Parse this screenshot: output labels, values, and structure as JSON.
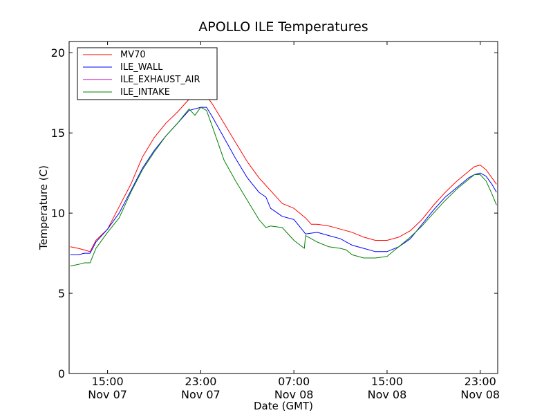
{
  "chart_data": {
    "type": "line",
    "title": "APOLLO ILE Temperatures",
    "xlabel": "Date (GMT)",
    "ylabel": "Temperature (C)",
    "ylim": [
      0,
      20.7
    ],
    "xlim": [
      11.7,
      48.5
    ],
    "grid": false,
    "legend_position": "top-left",
    "yticks": [
      0,
      5,
      10,
      15,
      20
    ],
    "xticks": [
      {
        "value": 15,
        "time": "15:00",
        "date": "Nov 07"
      },
      {
        "value": 23,
        "time": "23:00",
        "date": "Nov 07"
      },
      {
        "value": 31,
        "time": "07:00",
        "date": "Nov 08"
      },
      {
        "value": 39,
        "time": "15:00",
        "date": "Nov 08"
      },
      {
        "value": 47,
        "time": "23:00",
        "date": "Nov 08"
      }
    ],
    "series": [
      {
        "name": "MV70",
        "color": "#ff0000",
        "x": [
          11.8,
          12.5,
          13.0,
          13.5,
          14.0,
          15.0,
          16.0,
          17.0,
          18.0,
          19.0,
          20.0,
          21.0,
          22.0,
          23.0,
          23.5,
          24.0,
          25.0,
          26.0,
          27.0,
          28.0,
          29.0,
          30.0,
          31.0,
          32.0,
          32.5,
          33.0,
          34.0,
          35.0,
          36.0,
          37.0,
          38.0,
          39.0,
          40.0,
          41.0,
          42.0,
          43.0,
          44.0,
          45.0,
          46.0,
          46.5,
          47.0,
          47.5,
          48.0,
          48.4
        ],
        "y": [
          7.9,
          7.8,
          7.7,
          7.6,
          8.3,
          9.0,
          10.4,
          11.8,
          13.5,
          14.7,
          15.6,
          16.3,
          17.1,
          17.4,
          17.3,
          16.8,
          15.6,
          14.4,
          13.2,
          12.2,
          11.4,
          10.6,
          10.3,
          9.7,
          9.3,
          9.3,
          9.2,
          9.0,
          8.8,
          8.5,
          8.3,
          8.3,
          8.5,
          8.9,
          9.6,
          10.5,
          11.3,
          12.0,
          12.6,
          12.9,
          13.0,
          12.7,
          12.2,
          11.8
        ]
      },
      {
        "name": "ILE_WALL",
        "color": "#0000ff",
        "x": [
          11.8,
          12.5,
          13.0,
          13.5,
          14.0,
          15.0,
          16.0,
          17.0,
          18.0,
          19.0,
          20.0,
          21.0,
          22.0,
          23.0,
          23.5,
          24.0,
          25.0,
          26.0,
          27.0,
          28.0,
          28.6,
          29.0,
          30.0,
          31.0,
          31.9,
          32.0,
          33.0,
          34.0,
          35.0,
          35.5,
          36.0,
          37.0,
          38.0,
          39.0,
          40.0,
          41.0,
          42.0,
          43.0,
          44.0,
          45.0,
          46.0,
          46.5,
          47.0,
          47.5,
          48.0,
          48.4
        ],
        "y": [
          7.4,
          7.4,
          7.5,
          7.5,
          8.2,
          9.0,
          10.0,
          11.4,
          12.8,
          13.9,
          14.8,
          15.6,
          16.4,
          16.6,
          16.6,
          16.0,
          14.7,
          13.4,
          12.2,
          11.3,
          11.0,
          10.3,
          9.8,
          9.6,
          8.8,
          8.7,
          8.8,
          8.6,
          8.4,
          8.2,
          8.0,
          7.8,
          7.6,
          7.6,
          7.9,
          8.4,
          9.3,
          10.2,
          11.0,
          11.6,
          12.2,
          12.4,
          12.5,
          12.3,
          11.8,
          11.3
        ]
      },
      {
        "name": "ILE_EXHAUST_AIR",
        "color": "#bf00bf",
        "x": [],
        "y": []
      },
      {
        "name": "ILE_INTAKE",
        "color": "#008000",
        "x": [
          11.8,
          12.5,
          13.0,
          13.5,
          14.0,
          15.0,
          16.0,
          17.0,
          18.0,
          19.0,
          20.0,
          21.0,
          22.0,
          22.5,
          23.0,
          23.5,
          24.0,
          25.0,
          26.0,
          27.0,
          28.0,
          28.6,
          29.0,
          30.0,
          31.0,
          31.9,
          32.0,
          33.0,
          34.0,
          35.0,
          35.5,
          36.0,
          37.0,
          38.0,
          39.0,
          40.0,
          41.0,
          42.0,
          43.0,
          44.0,
          45.0,
          46.0,
          46.5,
          47.0,
          47.5,
          48.0,
          48.4
        ],
        "y": [
          6.7,
          6.8,
          6.9,
          6.9,
          7.8,
          8.8,
          9.7,
          11.3,
          12.7,
          13.8,
          14.8,
          15.6,
          16.5,
          16.1,
          16.6,
          16.4,
          15.4,
          13.3,
          12.0,
          10.8,
          9.6,
          9.1,
          9.2,
          9.1,
          8.3,
          7.8,
          8.6,
          8.2,
          7.9,
          7.8,
          7.7,
          7.4,
          7.2,
          7.2,
          7.3,
          7.9,
          8.5,
          9.2,
          10.0,
          10.8,
          11.5,
          12.1,
          12.4,
          12.4,
          12.0,
          11.2,
          10.5
        ]
      }
    ]
  }
}
